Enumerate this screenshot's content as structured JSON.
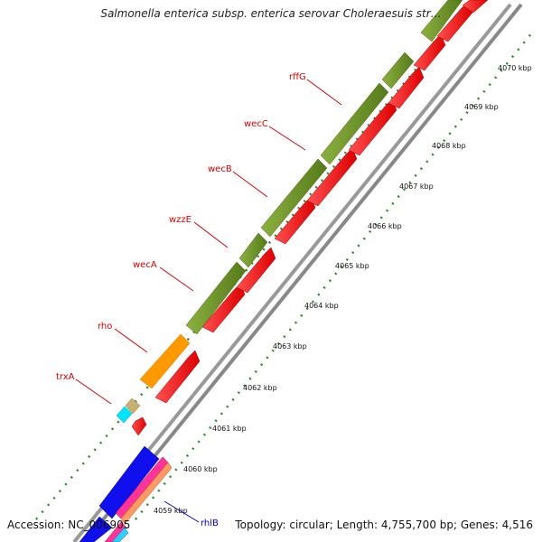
{
  "title": "Salmonella enterica subsp. enterica serovar Choleraesuis str…",
  "footer": {
    "accession": "Accession: NC_006905",
    "summary": "Topology: circular; Length: 4,755,700 bp; Genes: 4,516"
  },
  "colors": {
    "backbone_gray": "#999999",
    "gene_forward": "#6b8e23",
    "gene_reverse": "#ff0000",
    "gene_orange": "#ff9900",
    "gene_blue": "#0000ee",
    "tick_green": "#006600",
    "label_red": "#d00000",
    "label_blue": "#0000cc"
  },
  "gene_labels": [
    {
      "name": "rffG",
      "color": "red"
    },
    {
      "name": "wecC",
      "color": "red"
    },
    {
      "name": "wecB",
      "color": "red"
    },
    {
      "name": "wzzE",
      "color": "red"
    },
    {
      "name": "wecA",
      "color": "red"
    },
    {
      "name": "rho",
      "color": "red"
    },
    {
      "name": "trxA",
      "color": "red"
    },
    {
      "name": "rhlB",
      "color": "blue"
    }
  ],
  "kbp_labels": [
    "4070 kbp",
    "4069 kbp",
    "4068 kbp",
    "4067 kbp",
    "4066 kbp",
    "4065 kbp",
    "4064 kbp",
    "4063 kbp",
    "4062 kbp",
    "4061 kbp",
    "4060 kbp",
    "4059 kbp"
  ]
}
